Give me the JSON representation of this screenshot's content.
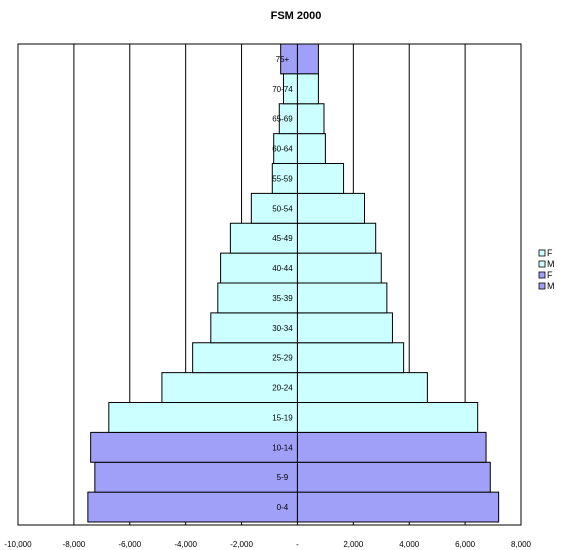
{
  "chart_data": {
    "type": "bar",
    "orientation": "horizontal",
    "title": "FSM 2000",
    "xlabel": "",
    "ylabel": "",
    "xlim": [
      -10000,
      8000
    ],
    "x_ticks": [
      "-10,000",
      "-8,000",
      "-6,000",
      "-4,000",
      "-2,000",
      "-",
      "2,000",
      "4,000",
      "6,000",
      "8,000"
    ],
    "x_tick_values": [
      -10000,
      -8000,
      -6000,
      -4000,
      -2000,
      0,
      2000,
      4000,
      6000,
      8000
    ],
    "grid": "vertical",
    "legend_position": "right",
    "categories": [
      "0-4",
      "5-9",
      "10-14",
      "15-19",
      "20-24",
      "25-29",
      "30-34",
      "35-39",
      "40-44",
      "45-49",
      "50-54",
      "55-59",
      "60-64",
      "65-69",
      "70-74",
      "75+"
    ],
    "series": [
      {
        "name": "M",
        "color": "#a0a0f8",
        "values": [
          -7500,
          -7250,
          -7400,
          0,
          0,
          0,
          0,
          0,
          0,
          0,
          0,
          0,
          0,
          0,
          0,
          -600
        ]
      },
      {
        "name": "F",
        "color": "#a0a0f8",
        "values": [
          7200,
          6900,
          6750,
          0,
          0,
          0,
          0,
          0,
          0,
          0,
          0,
          0,
          0,
          0,
          0,
          750
        ]
      },
      {
        "name": "M",
        "color": "#ccffff",
        "values": [
          0,
          0,
          0,
          -6750,
          -4850,
          -3750,
          -3100,
          -2850,
          -2750,
          -2400,
          -1650,
          -900,
          -850,
          -650,
          -500,
          0
        ]
      },
      {
        "name": "F",
        "color": "#ccffff",
        "values": [
          0,
          0,
          0,
          6450,
          4650,
          3800,
          3400,
          3200,
          3000,
          2800,
          2400,
          1650,
          1000,
          950,
          750,
          0
        ]
      }
    ],
    "legend": [
      {
        "name": "F",
        "color": "#ccffff"
      },
      {
        "name": "M",
        "color": "#ccffff"
      },
      {
        "name": "F",
        "color": "#a0a0f8"
      },
      {
        "name": "M",
        "color": "#a0a0f8"
      }
    ]
  }
}
